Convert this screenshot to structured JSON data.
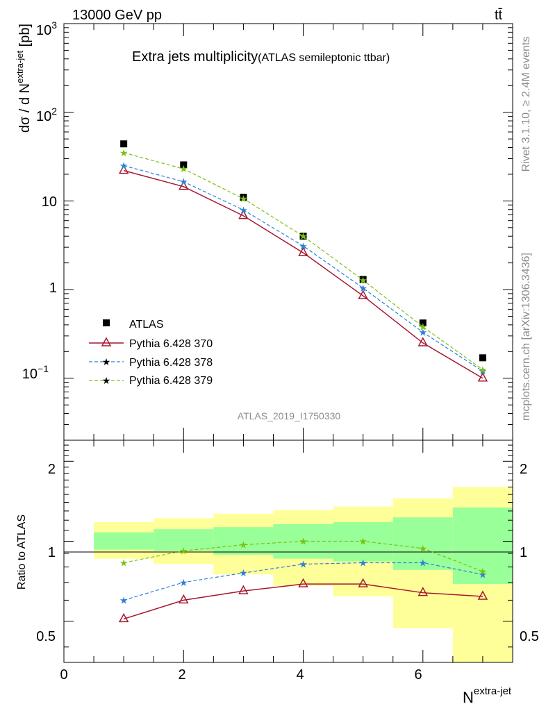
{
  "header": {
    "energy_label": "13000 GeV pp",
    "process_label": "tt̄",
    "title": "Extra jets multiplicity",
    "subtitle": "(ATLAS semileptonic ttbar)",
    "analysis_id": "ATLAS_2019_I1750330",
    "rivet_label": "Rivet 3.1.10, ≥ 2.4M events",
    "source_label": "mcplots.cern.ch [arXiv:1306.3436]"
  },
  "axes": {
    "ylabel_main_prefix": "dσ / d N",
    "ylabel_main_sup": "extra-jet",
    "ylabel_main_suffix": " [pb]",
    "ylabel_ratio": "Ratio to ATLAS",
    "xlabel": "N",
    "xlabel_sup": "extra-jet",
    "main_ticks": [
      "10",
      "10",
      "10",
      "1",
      "10",
      "10"
    ],
    "main_tick_exponents": [
      "3",
      "2",
      "",
      "",
      "−1",
      ""
    ],
    "ratio_ticks": [
      "2",
      "1",
      "0.5"
    ],
    "x_ticks": [
      "0",
      "2",
      "4",
      "6"
    ]
  },
  "legend": {
    "entries": [
      "ATLAS",
      "Pythia 6.428 370",
      "Pythia 6.428 378",
      "Pythia 6.428 379"
    ]
  },
  "colors": {
    "data": "#000000",
    "p370": "#a5172f",
    "p378": "#2a80db",
    "p379": "#79c214",
    "band_inner": "#99ff99",
    "band_outer": "#ffff99"
  },
  "chart_data": [
    {
      "type": "line",
      "title": "Extra jets multiplicity",
      "yscale": "log",
      "xlim": [
        0,
        7.5
      ],
      "ylim": [
        0.02,
        1000
      ],
      "x": [
        1,
        2,
        3,
        4,
        5,
        6,
        7
      ],
      "series": [
        {
          "name": "ATLAS",
          "values": [
            44,
            25.5,
            11,
            4.0,
            1.3,
            0.42,
            0.17
          ]
        },
        {
          "name": "Pythia 6.428 370",
          "values": [
            22,
            14.5,
            6.8,
            2.6,
            0.85,
            0.25,
            0.1
          ]
        },
        {
          "name": "Pythia 6.428 378",
          "values": [
            25,
            16.5,
            7.9,
            3.1,
            1.04,
            0.33,
            0.12
          ]
        },
        {
          "name": "Pythia 6.428 379",
          "values": [
            35,
            23,
            10.6,
            4.0,
            1.28,
            0.38,
            0.125
          ]
        }
      ]
    },
    {
      "type": "line",
      "ylabel": "Ratio to ATLAS",
      "yscale": "log",
      "xlim": [
        0,
        7.5
      ],
      "ylim": [
        0.35,
        2.4
      ],
      "x": [
        1,
        2,
        3,
        4,
        5,
        6,
        7
      ],
      "series": [
        {
          "name": "Pythia 6.428 370",
          "values": [
            0.51,
            0.6,
            0.65,
            0.69,
            0.69,
            0.64,
            0.62
          ]
        },
        {
          "name": "Pythia 6.428 378",
          "values": [
            0.6,
            0.7,
            0.76,
            0.82,
            0.83,
            0.83,
            0.75
          ]
        },
        {
          "name": "Pythia 6.428 379",
          "values": [
            0.83,
            0.92,
            0.97,
            1.0,
            1.0,
            0.94,
            0.77
          ]
        }
      ],
      "bands": {
        "inner": [
          [
            0.93,
            1.08
          ],
          [
            0.92,
            1.11
          ],
          [
            0.89,
            1.13
          ],
          [
            0.86,
            1.16
          ],
          [
            0.84,
            1.18
          ],
          [
            0.78,
            1.23
          ],
          [
            0.69,
            1.34
          ]
        ],
        "outer": [
          [
            0.86,
            1.18
          ],
          [
            0.82,
            1.22
          ],
          [
            0.75,
            1.27
          ],
          [
            0.68,
            1.31
          ],
          [
            0.62,
            1.35
          ],
          [
            0.47,
            1.45
          ],
          [
            0.3,
            1.6
          ]
        ]
      }
    }
  ]
}
